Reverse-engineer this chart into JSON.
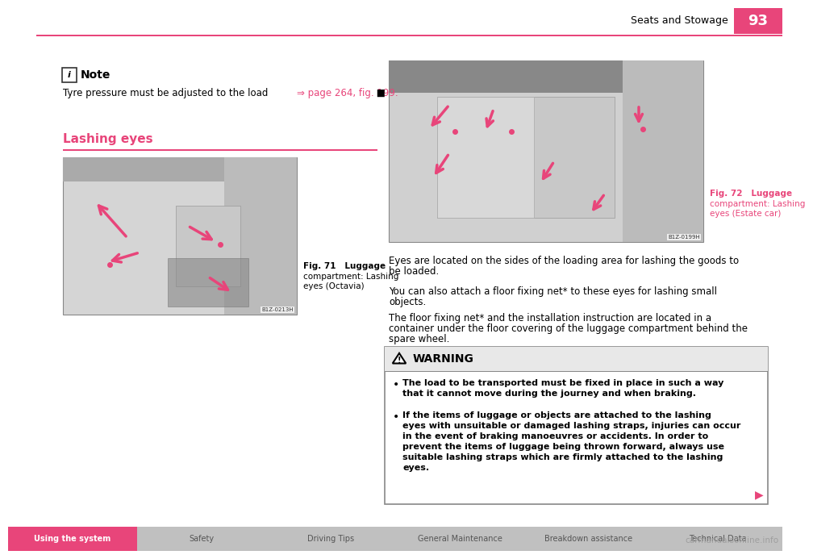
{
  "page_title": "Seats and Stowage",
  "page_number": "93",
  "pink": "#e8457a",
  "page_bg": "#ffffff",
  "gray_img": "#cccccc",
  "note_title": "Note",
  "note_text_black": "Tyre pressure must be adjusted to the load ",
  "note_text_pink": "⇒ page 264, fig. 199.",
  "note_text_end": " ■",
  "section_title": "Lashing eyes",
  "fig1_caption1": "Fig. 71   Luggage",
  "fig1_caption2": "compartment: Lashing",
  "fig1_caption3": "eyes (Octavia)",
  "fig1_code": "B1Z-0213H",
  "fig2_caption1": "Fig. 72   Luggage",
  "fig2_caption2": "compartment: Lashing",
  "fig2_caption3": "eyes (Estate car)",
  "fig2_code": "B1Z-0199H",
  "para1_line1": "Eyes are located on the sides of the loading area for lashing the goods to",
  "para1_line2": "be loaded.",
  "para2_line1": "You can also attach a floor fixing net* to these eyes for lashing small",
  "para2_line2": "objects.",
  "para3_line1": "The floor fixing net* and the installation instruction are located in a",
  "para3_line2": "container under the floor covering of the luggage compartment behind the",
  "para3_line3": "spare wheel.",
  "warn_title": "WARNING",
  "warn_b1_line1": "   The load to be transported must be fixed in place in such a way",
  "warn_b1_line2": "that it cannot move during the journey and when braking.",
  "warn_b2_line1": "   If the items of luggage or objects are attached to the lashing",
  "warn_b2_line2": "eyes with unsuitable or damaged lashing straps, injuries can occur",
  "warn_b2_line3": "in the event of braking manoeuvres or accidents. In order to",
  "warn_b2_line4": "prevent the items of luggage being thrown forward, always use",
  "warn_b2_line5": "suitable lashing straps which are firmly attached to the lashing",
  "warn_b2_line6": "eyes.",
  "nav_tabs": [
    "Using the system",
    "Safety",
    "Driving Tips",
    "General Maintenance",
    "Breakdown assistance",
    "Technical Data"
  ],
  "nav_active": 0,
  "nav_active_color": "#e8457a",
  "nav_inactive_bg": "#c0c0c0",
  "nav_text_white": "#ffffff",
  "nav_text_dark": "#555555"
}
